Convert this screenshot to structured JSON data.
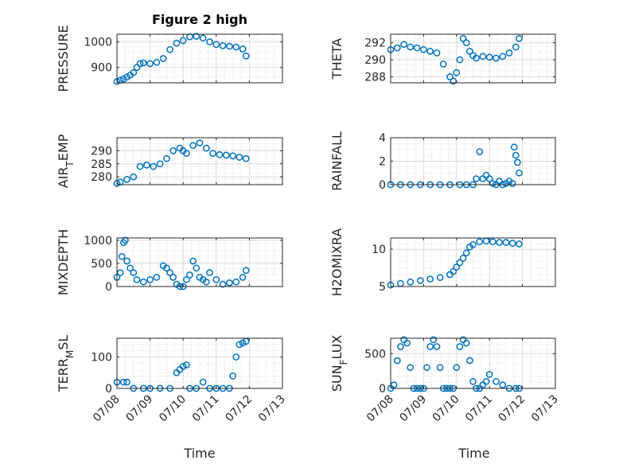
{
  "figure": {
    "title": "Figure 2 high",
    "xlabel": "Time"
  },
  "colors": {
    "marker": "#0072BD",
    "axis": "#262626",
    "grid": "#c8c8c8"
  },
  "chart_data": [
    {
      "type": "scatter",
      "ylabel": "PRESSURE",
      "xlim": [
        0,
        5
      ],
      "ylim": [
        840,
        1030
      ],
      "yticks": [
        900,
        1000
      ],
      "x": [
        0.0,
        0.1,
        0.2,
        0.3,
        0.4,
        0.5,
        0.6,
        0.7,
        0.8,
        1.0,
        1.2,
        1.4,
        1.6,
        1.8,
        2.0,
        2.2,
        2.4,
        2.6,
        2.8,
        3.0,
        3.2,
        3.4,
        3.6,
        3.8,
        3.9
      ],
      "y": [
        845,
        850,
        855,
        862,
        870,
        880,
        900,
        915,
        918,
        915,
        920,
        935,
        970,
        995,
        1005,
        1020,
        1022,
        1015,
        1000,
        990,
        985,
        983,
        980,
        972,
        945
      ]
    },
    {
      "type": "scatter",
      "ylabel": "THETA",
      "xlim": [
        0,
        5
      ],
      "ylim": [
        287.3,
        293
      ],
      "yticks": [
        288,
        290,
        292
      ],
      "x": [
        0.0,
        0.2,
        0.4,
        0.6,
        0.8,
        1.0,
        1.2,
        1.4,
        1.6,
        1.8,
        1.9,
        2.0,
        2.1,
        2.2,
        2.3,
        2.4,
        2.5,
        2.6,
        2.8,
        3.0,
        3.2,
        3.4,
        3.6,
        3.8,
        3.9
      ],
      "y": [
        291.2,
        291.4,
        291.8,
        291.5,
        291.4,
        291.2,
        291.0,
        290.8,
        289.5,
        288.0,
        287.5,
        288.5,
        290.0,
        292.5,
        292.0,
        291.0,
        290.5,
        290.2,
        290.4,
        290.3,
        290.2,
        290.4,
        290.8,
        291.5,
        292.5
      ]
    },
    {
      "type": "scatter",
      "ylabel": "AIR_TEMP",
      "xlim": [
        0,
        5
      ],
      "ylim": [
        277,
        295
      ],
      "yticks": [
        280,
        285,
        290
      ],
      "x": [
        0.0,
        0.1,
        0.3,
        0.5,
        0.7,
        0.9,
        1.1,
        1.3,
        1.5,
        1.7,
        1.9,
        2.0,
        2.1,
        2.3,
        2.5,
        2.7,
        2.9,
        3.1,
        3.3,
        3.5,
        3.7,
        3.9
      ],
      "y": [
        277.5,
        278,
        279,
        280,
        284,
        284.5,
        284,
        285,
        287,
        290,
        291,
        290,
        289,
        292,
        293,
        291,
        289,
        288.5,
        288.3,
        288,
        287.5,
        287
      ]
    },
    {
      "type": "scatter",
      "ylabel": "RAINFALL",
      "xlim": [
        0,
        5
      ],
      "ylim": [
        0,
        4
      ],
      "yticks": [
        0,
        2,
        4
      ],
      "x": [
        0.0,
        0.3,
        0.6,
        0.9,
        1.2,
        1.5,
        1.8,
        2.1,
        2.3,
        2.5,
        2.6,
        2.7,
        2.8,
        2.9,
        3.0,
        3.1,
        3.2,
        3.3,
        3.4,
        3.5,
        3.6,
        3.7,
        3.75,
        3.8,
        3.85,
        3.9
      ],
      "y": [
        0,
        0,
        0,
        0,
        0,
        0,
        0,
        0,
        0,
        0,
        0.5,
        2.8,
        0.5,
        0.8,
        0.5,
        0.1,
        0,
        0.3,
        0,
        0.1,
        0.3,
        0.1,
        3.2,
        2.5,
        1.9,
        1.0
      ]
    },
    {
      "type": "scatter",
      "ylabel": "MIXDEPTH",
      "xlim": [
        0,
        5
      ],
      "ylim": [
        0,
        1050
      ],
      "yticks": [
        0,
        500,
        1000
      ],
      "x": [
        0.0,
        0.1,
        0.15,
        0.2,
        0.25,
        0.3,
        0.4,
        0.5,
        0.6,
        0.8,
        1.0,
        1.2,
        1.4,
        1.5,
        1.6,
        1.7,
        1.8,
        1.9,
        2.0,
        2.1,
        2.2,
        2.3,
        2.4,
        2.5,
        2.6,
        2.7,
        2.8,
        3.0,
        3.2,
        3.4,
        3.6,
        3.8,
        3.9
      ],
      "y": [
        200,
        300,
        650,
        950,
        1000,
        550,
        400,
        300,
        150,
        100,
        150,
        200,
        450,
        400,
        300,
        200,
        50,
        0,
        0,
        150,
        250,
        550,
        400,
        200,
        150,
        100,
        300,
        150,
        50,
        80,
        100,
        200,
        350
      ]
    },
    {
      "type": "scatter",
      "ylabel": "H2OMIXRA",
      "xlim": [
        0,
        5
      ],
      "ylim": [
        5,
        11.5
      ],
      "yticks": [
        5,
        10
      ],
      "x": [
        0.0,
        0.3,
        0.6,
        0.9,
        1.2,
        1.5,
        1.8,
        1.9,
        2.0,
        2.1,
        2.2,
        2.3,
        2.4,
        2.5,
        2.7,
        2.9,
        3.1,
        3.3,
        3.5,
        3.7,
        3.9
      ],
      "y": [
        5.2,
        5.4,
        5.6,
        5.8,
        6.0,
        6.2,
        6.6,
        7.0,
        7.6,
        8.2,
        8.8,
        9.5,
        10.3,
        10.6,
        11.0,
        11.1,
        11.0,
        10.9,
        10.9,
        10.8,
        10.7
      ]
    },
    {
      "type": "scatter",
      "ylabel": "TERR_MSL",
      "xlim": [
        0,
        5
      ],
      "ylim": [
        0,
        160
      ],
      "yticks": [
        0,
        100
      ],
      "x": [
        0.0,
        0.2,
        0.3,
        0.5,
        0.8,
        1.0,
        1.3,
        1.6,
        1.8,
        1.9,
        2.0,
        2.1,
        2.2,
        2.4,
        2.6,
        2.8,
        3.0,
        3.2,
        3.4,
        3.5,
        3.6,
        3.7,
        3.8,
        3.9
      ],
      "y": [
        20,
        20,
        20,
        0,
        0,
        0,
        0,
        0,
        50,
        60,
        70,
        75,
        0,
        0,
        20,
        0,
        0,
        0,
        0,
        40,
        100,
        140,
        145,
        150
      ]
    },
    {
      "type": "scatter",
      "ylabel": "SUN_FLUX",
      "xlim": [
        0,
        5
      ],
      "ylim": [
        0,
        720
      ],
      "yticks": [
        0,
        500
      ],
      "x": [
        0.0,
        0.1,
        0.2,
        0.3,
        0.4,
        0.5,
        0.6,
        0.7,
        0.8,
        0.9,
        1.0,
        1.1,
        1.2,
        1.3,
        1.4,
        1.5,
        1.6,
        1.7,
        1.8,
        1.9,
        2.0,
        2.1,
        2.2,
        2.3,
        2.4,
        2.5,
        2.6,
        2.7,
        2.8,
        2.9,
        3.0,
        3.2,
        3.4,
        3.6,
        3.8,
        3.9
      ],
      "y": [
        0,
        50,
        400,
        600,
        700,
        650,
        300,
        0,
        0,
        0,
        0,
        300,
        600,
        700,
        600,
        300,
        0,
        0,
        0,
        0,
        300,
        600,
        700,
        650,
        400,
        100,
        0,
        0,
        50,
        100,
        200,
        100,
        50,
        0,
        0,
        0
      ]
    }
  ],
  "xticks": [
    "07/08",
    "07/09",
    "07/10",
    "07/11",
    "07/12",
    "07/13"
  ]
}
